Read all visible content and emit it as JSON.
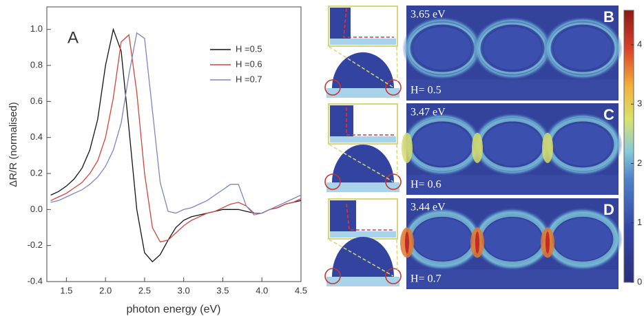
{
  "chart_data": {
    "type": "line",
    "panel_label": "A",
    "x_label": "photon energy (eV)",
    "y_label": "ΔR/R (normalised)",
    "x": [
      1.3,
      1.4,
      1.5,
      1.6,
      1.7,
      1.8,
      1.9,
      2.0,
      2.1,
      2.2,
      2.3,
      2.4,
      2.5,
      2.6,
      2.7,
      2.8,
      2.9,
      3.0,
      3.1,
      3.2,
      3.3,
      3.4,
      3.5,
      3.6,
      3.7,
      3.8,
      3.9,
      4.0,
      4.1,
      4.2,
      4.3,
      4.4,
      4.5
    ],
    "series": [
      {
        "name": "H =0.5",
        "color": "#111111",
        "values": [
          0.08,
          0.1,
          0.13,
          0.17,
          0.23,
          0.33,
          0.5,
          0.8,
          1.0,
          0.88,
          0.45,
          0.0,
          -0.24,
          -0.29,
          -0.25,
          -0.17,
          -0.1,
          -0.06,
          -0.04,
          -0.03,
          -0.02,
          -0.01,
          0.0,
          0.0,
          0.0,
          -0.01,
          -0.02,
          -0.02,
          0.0,
          0.01,
          0.03,
          0.04,
          0.05
        ]
      },
      {
        "name": "H =0.6",
        "color": "#d9423b",
        "values": [
          0.05,
          0.07,
          0.09,
          0.12,
          0.15,
          0.2,
          0.27,
          0.4,
          0.62,
          0.93,
          0.97,
          0.65,
          0.2,
          -0.1,
          -0.18,
          -0.17,
          -0.13,
          -0.09,
          -0.06,
          -0.04,
          -0.02,
          -0.01,
          0.01,
          0.03,
          0.04,
          0.02,
          -0.02,
          -0.02,
          0.0,
          0.01,
          0.03,
          0.04,
          0.06
        ]
      },
      {
        "name": "H =0.7",
        "color": "#7b84c4",
        "values": [
          0.04,
          0.05,
          0.07,
          0.09,
          0.11,
          0.14,
          0.18,
          0.24,
          0.33,
          0.48,
          0.75,
          0.98,
          0.95,
          0.55,
          0.15,
          -0.01,
          -0.02,
          0.0,
          0.01,
          0.03,
          0.05,
          0.08,
          0.11,
          0.14,
          0.14,
          0.02,
          -0.03,
          -0.02,
          0.0,
          0.02,
          0.04,
          0.06,
          0.08
        ]
      }
    ],
    "xlim": [
      1.25,
      4.5
    ],
    "xticks": [
      1.5,
      {
        "value": 2,
        "label": "2.0"
      },
      2.5,
      {
        "value": 3,
        "label": "3.0"
      },
      3.5,
      {
        "value": 4,
        "label": "4.0"
      },
      4.5
    ],
    "ylim": [
      -0.4,
      1.125
    ],
    "yticks": [
      -0.4,
      -0.2,
      {
        "value": 0,
        "label": "0.0"
      },
      0.2,
      0.4,
      0.6,
      0.8,
      {
        "value": 1,
        "label": "1.0"
      }
    ],
    "legend": "upper right",
    "grid": false
  },
  "maps": {
    "panels": [
      {
        "label": "B",
        "energy": "3.65 eV",
        "height": "H= 0.5"
      },
      {
        "label": "C",
        "energy": "3.47 eV",
        "height": "H= 0.6"
      },
      {
        "label": "D",
        "energy": "3.44 eV",
        "height": "H= 0.7"
      }
    ],
    "colorbar": {
      "ylim": [
        0,
        4.58
      ],
      "yticks": [
        0,
        1,
        2,
        3,
        4
      ]
    }
  }
}
